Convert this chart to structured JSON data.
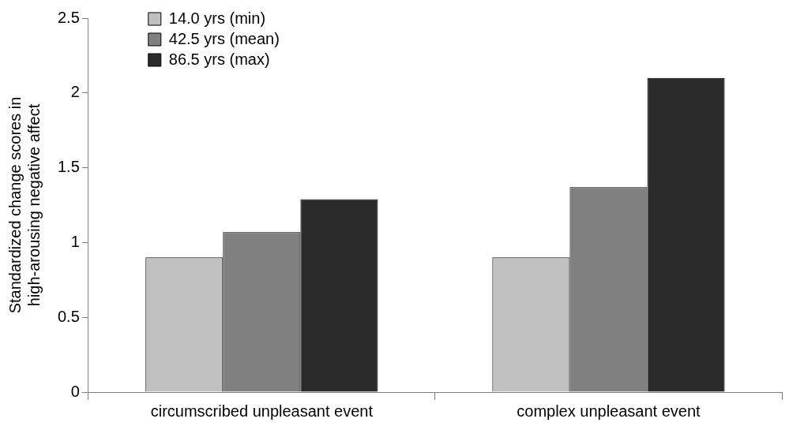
{
  "chart_data": {
    "type": "bar",
    "ylabel": "Standardized change scores in\nhigh-arousing negative affect",
    "categories": [
      "circumscribed unpleasant event",
      "complex unpleasant event"
    ],
    "series": [
      {
        "name": "14.0 yrs (min)",
        "color": "#c0c0c0",
        "values": [
          0.9,
          0.9
        ]
      },
      {
        "name": "42.5 yrs (mean)",
        "color": "#808080",
        "values": [
          1.07,
          1.37
        ]
      },
      {
        "name": "86.5 yrs (max)",
        "color": "#2b2b2b",
        "values": [
          1.29,
          2.1
        ]
      }
    ],
    "ylim": [
      0,
      2.5
    ],
    "yticks": [
      0,
      0.5,
      1,
      1.5,
      2,
      2.5
    ],
    "grid": false,
    "legend": "top left"
  }
}
